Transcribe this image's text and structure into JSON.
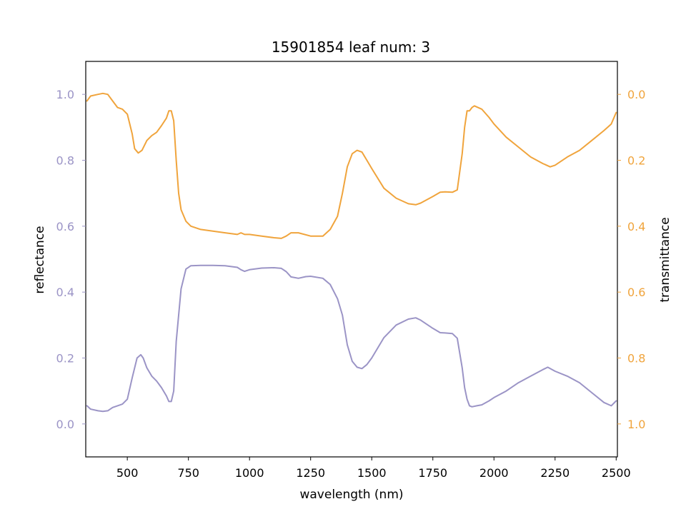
{
  "chart_data": {
    "type": "line",
    "title": "15901854 leaf num: 3",
    "xlabel": "wavelength (nm)",
    "xlim": [
      330,
      2505
    ],
    "x_ticks": [
      500,
      750,
      1000,
      1250,
      1500,
      1750,
      2000,
      2250,
      2500
    ],
    "left_axis": {
      "label": "reflectance",
      "color": "#9b94c6",
      "ylim": [
        -0.1,
        1.1
      ],
      "ticks": [
        0.0,
        0.2,
        0.4,
        0.6,
        0.8,
        1.0
      ],
      "tick_labels": [
        "0.0",
        "0.2",
        "0.4",
        "0.6",
        "0.8",
        "1.0"
      ]
    },
    "right_axis": {
      "label": "transmittance",
      "color": "#f0a43c",
      "ylim": [
        1.1,
        -0.1
      ],
      "inverted": true,
      "ticks": [
        0.0,
        0.2,
        0.4,
        0.6,
        0.8,
        1.0
      ],
      "tick_labels": [
        "0.0",
        "0.2",
        "0.4",
        "0.6",
        "0.8",
        "1.0"
      ]
    },
    "series": [
      {
        "axis": "left",
        "color": "#9b94c6",
        "x": [
          335,
          350,
          380,
          400,
          420,
          440,
          460,
          480,
          500,
          520,
          540,
          555,
          565,
          580,
          600,
          620,
          640,
          660,
          670,
          680,
          690,
          700,
          720,
          740,
          760,
          800,
          850,
          900,
          950,
          965,
          980,
          1000,
          1050,
          1100,
          1130,
          1150,
          1170,
          1200,
          1230,
          1250,
          1300,
          1330,
          1360,
          1380,
          1400,
          1420,
          1440,
          1460,
          1480,
          1500,
          1550,
          1600,
          1650,
          1680,
          1700,
          1750,
          1780,
          1800,
          1830,
          1850,
          1870,
          1880,
          1890,
          1900,
          1910,
          1930,
          1950,
          1980,
          2000,
          2050,
          2100,
          2150,
          2200,
          2220,
          2250,
          2300,
          2350,
          2400,
          2450,
          2480,
          2500
        ],
        "y": [
          0.055,
          0.045,
          0.04,
          0.038,
          0.04,
          0.05,
          0.055,
          0.06,
          0.075,
          0.14,
          0.2,
          0.21,
          0.2,
          0.17,
          0.145,
          0.13,
          0.11,
          0.085,
          0.068,
          0.068,
          0.1,
          0.25,
          0.41,
          0.47,
          0.48,
          0.481,
          0.481,
          0.48,
          0.475,
          0.468,
          0.463,
          0.468,
          0.473,
          0.474,
          0.472,
          0.462,
          0.446,
          0.442,
          0.447,
          0.448,
          0.442,
          0.423,
          0.38,
          0.33,
          0.24,
          0.19,
          0.172,
          0.168,
          0.18,
          0.2,
          0.262,
          0.3,
          0.318,
          0.322,
          0.315,
          0.29,
          0.277,
          0.276,
          0.274,
          0.26,
          0.17,
          0.11,
          0.075,
          0.055,
          0.052,
          0.055,
          0.058,
          0.07,
          0.08,
          0.1,
          0.125,
          0.145,
          0.165,
          0.172,
          0.16,
          0.145,
          0.125,
          0.095,
          0.065,
          0.055,
          0.07
        ]
      },
      {
        "axis": "right",
        "color": "#f0a43c",
        "x": [
          335,
          350,
          380,
          400,
          420,
          440,
          460,
          480,
          500,
          520,
          530,
          545,
          560,
          580,
          600,
          620,
          640,
          660,
          670,
          680,
          690,
          700,
          710,
          720,
          740,
          760,
          800,
          850,
          900,
          950,
          965,
          980,
          1000,
          1050,
          1100,
          1130,
          1150,
          1170,
          1200,
          1250,
          1300,
          1330,
          1360,
          1380,
          1400,
          1420,
          1440,
          1460,
          1480,
          1500,
          1550,
          1600,
          1650,
          1680,
          1700,
          1750,
          1780,
          1800,
          1830,
          1850,
          1870,
          1880,
          1890,
          1900,
          1910,
          1920,
          1950,
          1980,
          2000,
          2050,
          2100,
          2150,
          2200,
          2230,
          2250,
          2300,
          2350,
          2400,
          2450,
          2480,
          2500
        ],
        "y": [
          0.02,
          0.005,
          0.0,
          -0.003,
          0.0,
          0.02,
          0.04,
          0.045,
          0.06,
          0.12,
          0.165,
          0.178,
          0.17,
          0.14,
          0.125,
          0.115,
          0.095,
          0.072,
          0.05,
          0.05,
          0.08,
          0.2,
          0.3,
          0.35,
          0.385,
          0.4,
          0.41,
          0.415,
          0.42,
          0.425,
          0.42,
          0.425,
          0.425,
          0.43,
          0.435,
          0.437,
          0.43,
          0.42,
          0.42,
          0.43,
          0.43,
          0.41,
          0.37,
          0.3,
          0.22,
          0.18,
          0.17,
          0.175,
          0.2,
          0.225,
          0.285,
          0.315,
          0.332,
          0.335,
          0.33,
          0.31,
          0.297,
          0.296,
          0.297,
          0.29,
          0.18,
          0.1,
          0.05,
          0.05,
          0.04,
          0.035,
          0.045,
          0.07,
          0.09,
          0.13,
          0.16,
          0.19,
          0.21,
          0.22,
          0.215,
          0.19,
          0.17,
          0.14,
          0.11,
          0.09,
          0.055
        ]
      }
    ]
  }
}
